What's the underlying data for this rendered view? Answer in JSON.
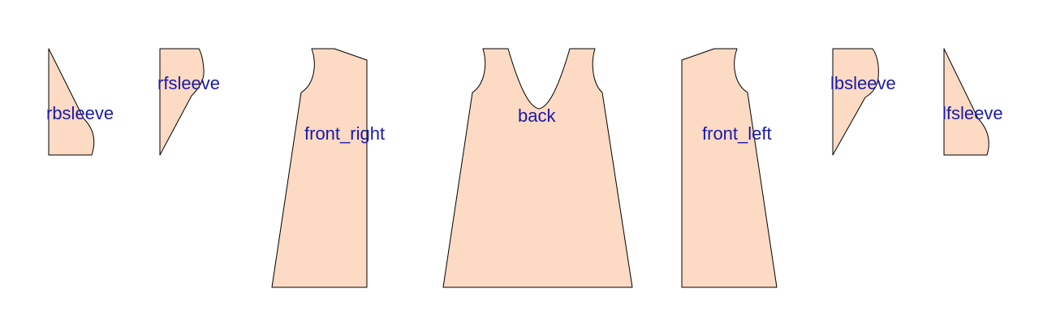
{
  "colors": {
    "piece_fill": "#fcdac3",
    "piece_stroke": "#000000",
    "label": "#1a1aa8",
    "background": "#ffffff"
  },
  "pieces": [
    {
      "id": "rbsleeve",
      "label": "rbsleeve"
    },
    {
      "id": "rfsleeve",
      "label": "rfsleeve"
    },
    {
      "id": "front_right",
      "label": "front_right"
    },
    {
      "id": "back",
      "label": "back"
    },
    {
      "id": "front_left",
      "label": "front_left"
    },
    {
      "id": "lbsleeve",
      "label": "lbsleeve"
    },
    {
      "id": "lfsleeve",
      "label": "lfsleeve"
    }
  ]
}
